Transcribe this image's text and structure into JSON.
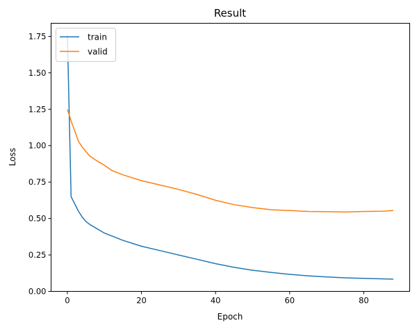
{
  "chart_data": {
    "type": "line",
    "title": "Result",
    "xlabel": "Epoch",
    "ylabel": "Loss",
    "xlim": [
      -4.4,
      92.4
    ],
    "ylim": [
      0,
      1.84
    ],
    "xticks": [
      0,
      20,
      40,
      60,
      80
    ],
    "yticks": [
      0.0,
      0.25,
      0.5,
      0.75,
      1.0,
      1.25,
      1.5,
      1.75
    ],
    "ytick_labels": [
      "0.00",
      "0.25",
      "0.50",
      "0.75",
      "1.00",
      "1.25",
      "1.50",
      "1.75"
    ],
    "grid": false,
    "legend": {
      "placement": "top-left",
      "entries": [
        "train",
        "valid"
      ]
    },
    "series": [
      {
        "name": "train",
        "color": "#1f77b4",
        "x": [
          0,
          1,
          2,
          3,
          4,
          5,
          6,
          8,
          10,
          15,
          20,
          25,
          30,
          35,
          40,
          45,
          50,
          55,
          60,
          65,
          70,
          75,
          80,
          85,
          88
        ],
        "y": [
          1.76,
          0.65,
          0.6,
          0.55,
          0.51,
          0.48,
          0.46,
          0.43,
          0.4,
          0.35,
          0.31,
          0.28,
          0.25,
          0.22,
          0.19,
          0.165,
          0.145,
          0.13,
          0.117,
          0.107,
          0.099,
          0.093,
          0.089,
          0.086,
          0.084
        ]
      },
      {
        "name": "valid",
        "color": "#ff7f0e",
        "x": [
          0,
          1,
          2,
          3,
          4,
          5,
          6,
          8,
          10,
          12,
          15,
          20,
          25,
          30,
          35,
          40,
          45,
          50,
          55,
          60,
          65,
          70,
          75,
          80,
          85,
          88
        ],
        "y": [
          1.25,
          1.17,
          1.1,
          1.03,
          0.99,
          0.96,
          0.93,
          0.895,
          0.865,
          0.83,
          0.8,
          0.76,
          0.73,
          0.7,
          0.665,
          0.625,
          0.595,
          0.575,
          0.56,
          0.555,
          0.548,
          0.547,
          0.545,
          0.548,
          0.55,
          0.555
        ]
      }
    ]
  }
}
